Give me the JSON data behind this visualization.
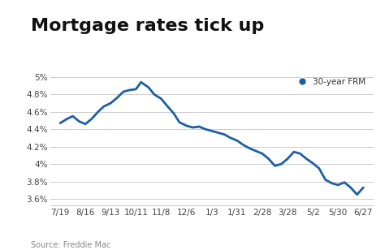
{
  "title": "Mortgage rates tick up",
  "legend_label": "30-year FRM",
  "source_text": "Source: Freddie Mac",
  "line_color": "#1c5fa5",
  "marker_color": "#1c5fa5",
  "background_color": "#ffffff",
  "grid_color": "#cccccc",
  "x_labels": [
    "7/19",
    "8/16",
    "9/13",
    "10/11",
    "11/8",
    "12/6",
    "1/3",
    "1/31",
    "2/28",
    "3/28",
    "5/2",
    "5/30",
    "6/27"
  ],
  "y_ticks": [
    3.6,
    3.8,
    4.0,
    4.2,
    4.4,
    4.6,
    4.8,
    5.0
  ],
  "y_tick_labels": [
    "3.6%",
    "3.8%",
    "4%",
    "4.2%",
    "4.4%",
    "4.6%",
    "4.8%",
    "5%"
  ],
  "ylim": [
    3.53,
    5.08
  ],
  "xlim": [
    -0.4,
    12.4
  ],
  "title_fontsize": 16,
  "label_fontsize": 7.5,
  "source_fontsize": 7,
  "x_data": [
    0.0,
    0.28,
    0.5,
    0.75,
    1.0,
    1.25,
    1.5,
    1.72,
    2.0,
    2.25,
    2.5,
    2.75,
    3.0,
    3.2,
    3.5,
    3.72,
    4.0,
    4.2,
    4.5,
    4.72,
    5.0,
    5.25,
    5.5,
    5.75,
    6.0,
    6.25,
    6.5,
    6.75,
    7.0,
    7.25,
    7.5,
    7.75,
    8.0,
    8.25,
    8.5,
    8.75,
    9.0,
    9.25,
    9.5,
    9.75,
    10.0,
    10.25,
    10.5,
    10.75,
    11.0,
    11.25,
    11.5,
    11.75,
    12.0
  ],
  "y_data": [
    4.47,
    4.52,
    4.55,
    4.49,
    4.46,
    4.52,
    4.6,
    4.66,
    4.7,
    4.76,
    4.83,
    4.85,
    4.86,
    4.94,
    4.88,
    4.8,
    4.75,
    4.68,
    4.58,
    4.48,
    4.44,
    4.42,
    4.43,
    4.4,
    4.38,
    4.36,
    4.34,
    4.3,
    4.27,
    4.22,
    4.18,
    4.15,
    4.12,
    4.06,
    3.98,
    4.0,
    4.06,
    4.14,
    4.12,
    4.06,
    4.01,
    3.95,
    3.82,
    3.78,
    3.76,
    3.79,
    3.73,
    3.65,
    3.73
  ]
}
